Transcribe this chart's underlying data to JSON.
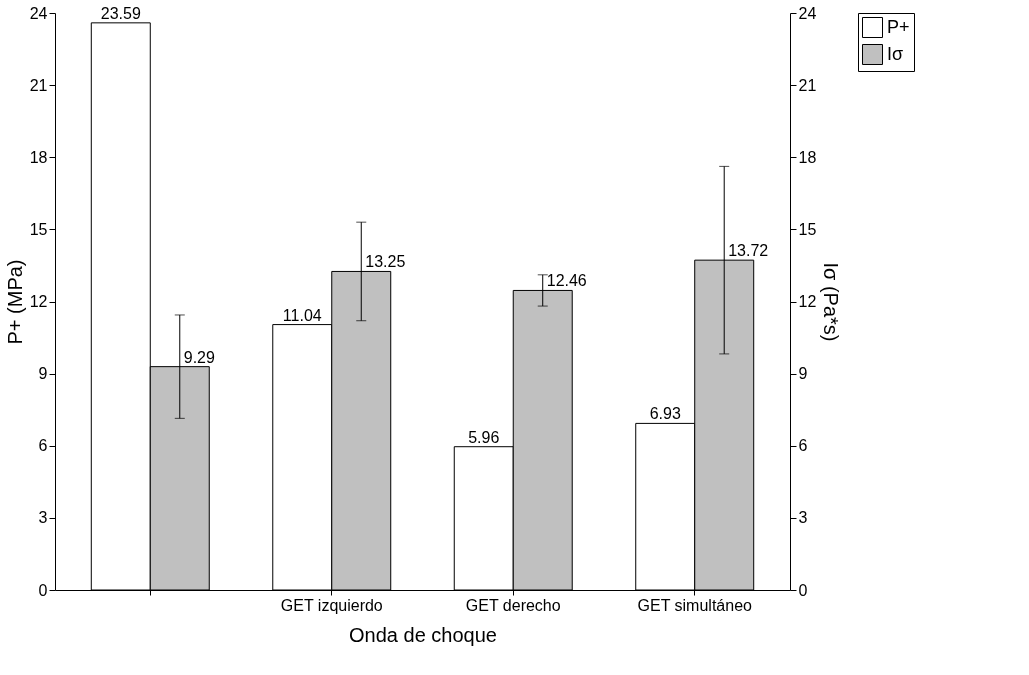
{
  "chart_data": {
    "type": "bar",
    "xlabel": "Onda de choque",
    "ylabel": "P+ (MPa)",
    "y2label": "Iσ (Pa*s)",
    "categories": [
      null,
      "GET izquierdo",
      "GET derecho",
      "GET simultáneo"
    ],
    "series": [
      {
        "name": "P+",
        "color": "#ffffff",
        "values": [
          23.59,
          11.04,
          5.96,
          6.93
        ]
      },
      {
        "name": "Iσ",
        "color": "#c0c0c0",
        "axis": "y2",
        "values": [
          9.29,
          13.25,
          12.46,
          13.72
        ],
        "errors": [
          2.15,
          2.05,
          0.65,
          3.9
        ]
      }
    ],
    "ylim": [
      0,
      24
    ],
    "yticks": [
      0,
      3,
      6,
      9,
      12,
      15,
      18,
      21,
      24
    ],
    "y2lim": [
      0,
      24
    ],
    "y2ticks": [
      0,
      3,
      6,
      9,
      12,
      15,
      18,
      21,
      24
    ],
    "data_labels": true,
    "legend": "right",
    "grid": false
  }
}
